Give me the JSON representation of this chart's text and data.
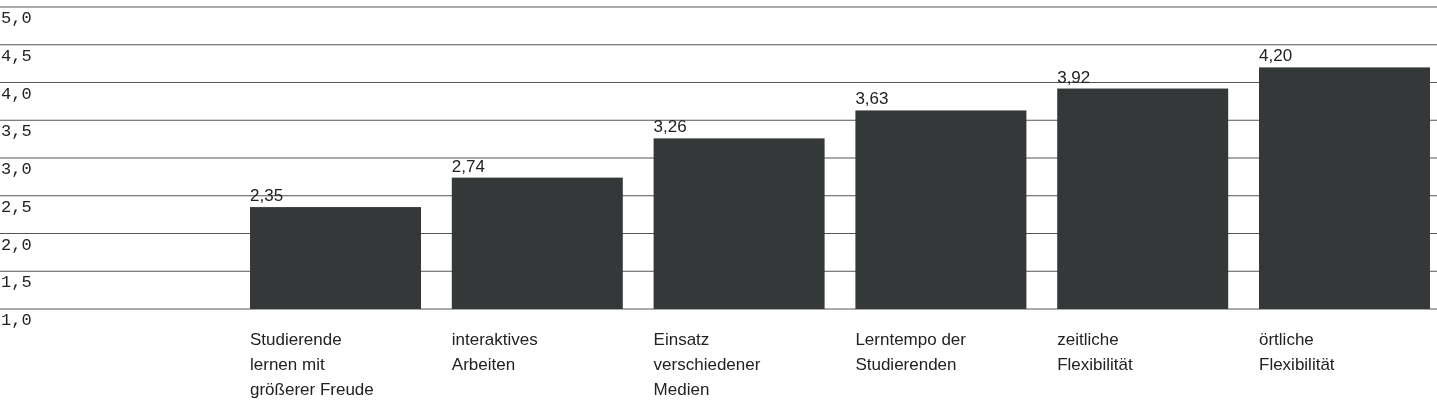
{
  "chart_data": {
    "type": "bar",
    "categories": [
      "Studierende\nlernen mit\ngrößerer Freude",
      "interaktives\nArbeiten",
      "Einsatz\nverschiedener\nMedien",
      "Lerntempo der\nStudierenden",
      "zeitliche\nFlexibilität",
      "örtliche\nFlexibilität"
    ],
    "values": [
      2.35,
      2.74,
      3.26,
      3.63,
      3.92,
      4.2
    ],
    "value_labels": [
      "2,35",
      "2,74",
      "3,26",
      "3,63",
      "3,92",
      "4,20"
    ],
    "color": "#353839",
    "ylim": [
      1,
      5
    ],
    "yticks": [
      {
        "value": 1,
        "label": "1,0"
      },
      {
        "value": 1.5,
        "label": "1,5"
      },
      {
        "value": 2,
        "label": "2,0"
      },
      {
        "value": 2.5,
        "label": "2,5"
      },
      {
        "value": 3,
        "label": "3,0"
      },
      {
        "value": 3.5,
        "label": "3,5"
      },
      {
        "value": 4,
        "label": "4,0"
      },
      {
        "value": 4.5,
        "label": "4,5"
      },
      {
        "value": 5,
        "label": "5,0"
      }
    ],
    "grid": "y"
  }
}
